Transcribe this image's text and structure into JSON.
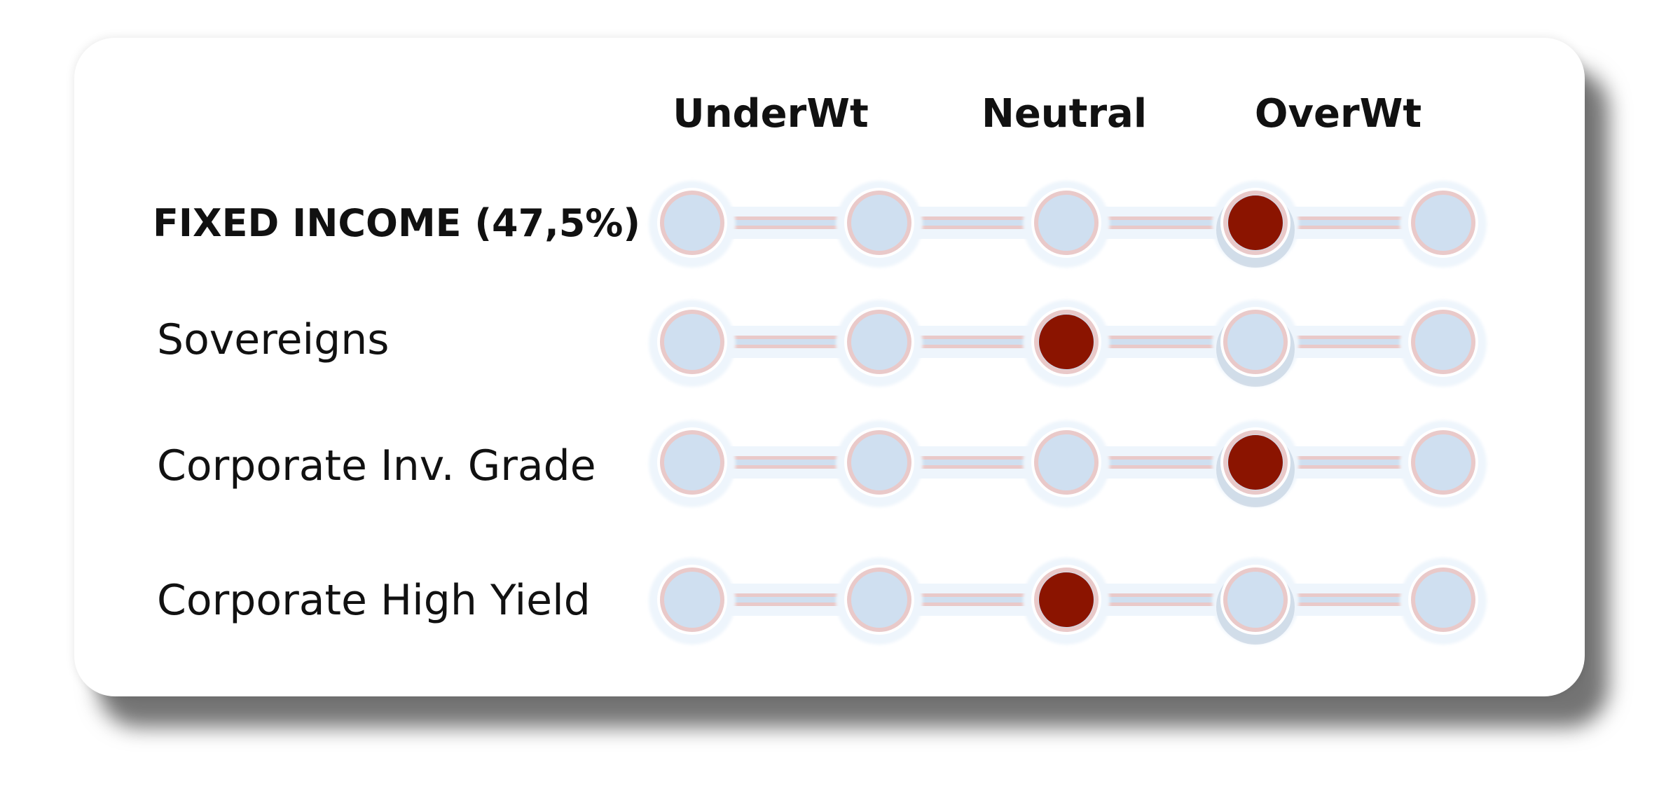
{
  "chart_data": {
    "type": "dot-scale",
    "scale_labels": [
      "UnderWt",
      "Neutral",
      "OverWt"
    ],
    "positions": 5,
    "rows": [
      {
        "label": "FIXED INCOME (47,5%)",
        "value": 4,
        "emphasis": true
      },
      {
        "label": "Sovereigns",
        "value": 3,
        "emphasis": false
      },
      {
        "label": "Corporate Inv. Grade",
        "value": 4,
        "emphasis": false
      },
      {
        "label": "Corporate High Yield",
        "value": 3,
        "emphasis": false
      }
    ],
    "colors": {
      "selected": "#8b1400",
      "node": "#cfdff0",
      "node_ring": "#e9c9c9",
      "track": "#e9c9c9",
      "halo": "#eef5fc"
    }
  }
}
